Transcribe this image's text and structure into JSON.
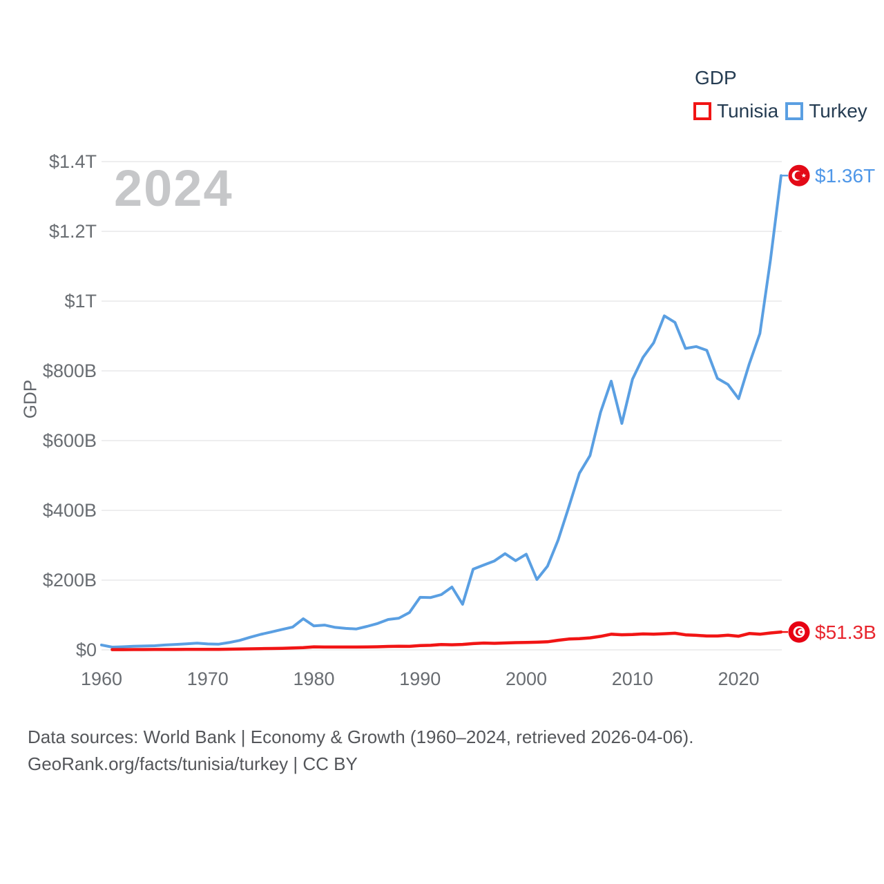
{
  "watermark": {
    "year": "2024"
  },
  "legend": {
    "title": "GDP",
    "items": [
      {
        "label": "Tunisia",
        "color": "#f11515"
      },
      {
        "label": "Turkey",
        "color": "#5a9fe2"
      }
    ]
  },
  "footer": {
    "line1": "Data sources: World Bank | Economy & Growth (1960–2024, retrieved 2026-04-06).",
    "line2": "GeoRank.org/facts/tunisia/turkey | CC BY"
  },
  "chart_data": {
    "type": "line",
    "title": "GDP",
    "ylabel": "GDP",
    "unit": "current US$",
    "x_range": [
      1960,
      2024
    ],
    "ylim_billions": [
      0,
      1400
    ],
    "grid": "horizontal",
    "legend_position": "top-right",
    "y_ticks": [
      {
        "value": 0,
        "label": "$0"
      },
      {
        "value": 200,
        "label": "$200B"
      },
      {
        "value": 400,
        "label": "$400B"
      },
      {
        "value": 600,
        "label": "$600B"
      },
      {
        "value": 800,
        "label": "$800B"
      },
      {
        "value": 1000,
        "label": "$1T"
      },
      {
        "value": 1200,
        "label": "$1.2T"
      },
      {
        "value": 1400,
        "label": "$1.4T"
      }
    ],
    "x_ticks": [
      1960,
      1970,
      1980,
      1990,
      2000,
      2010,
      2020
    ],
    "series": [
      {
        "name": "Turkey",
        "color": "#5a9fe2",
        "end_label": "$1.36T",
        "end_label_color": "#4f97e8",
        "flag": "turkey-flag-icon",
        "flag_bg": "#e30a17",
        "flag_fg": "#ffffff",
        "start_year": 1960,
        "values_billions_usd": [
          13.99,
          7.99,
          8.92,
          10.36,
          11.18,
          11.95,
          14.12,
          15.67,
          17.5,
          19.47,
          17.09,
          16.25,
          21.0,
          27.12,
          36.22,
          44.63,
          51.28,
          58.68,
          65.55,
          89.39,
          68.79,
          71.04,
          64.55,
          61.68,
          59.99,
          67.23,
          75.73,
          87.17,
          90.85,
          107.14,
          150.68,
          150.03,
          158.46,
          180.17,
          130.69,
          231.53,
          243.41,
          255.09,
          275.77,
          255.9,
          274.3,
          201.75,
          240.25,
          314.59,
          408.87,
          506.31,
          557.06,
          681.32,
          770.45,
          649.29,
          776.01,
          838.79,
          880.56,
          957.8,
          938.93,
          864.31,
          869.68,
          858.99,
          778.47,
          760.93,
          720.29,
          819.87,
          907.12,
          1118.25,
          1360.0
        ]
      },
      {
        "name": "Tunisia",
        "color": "#f11515",
        "end_label": "$51.3B",
        "end_label_color": "#e8252d",
        "flag": "tunisia-flag-icon",
        "flag_bg": "#e70013",
        "flag_fg": "#ffffff",
        "start_year": 1961,
        "values_billions_usd": [
          0.85,
          0.88,
          1.0,
          1.06,
          1.13,
          1.18,
          1.23,
          1.3,
          1.4,
          1.44,
          1.61,
          1.98,
          2.28,
          3.06,
          3.6,
          4.02,
          4.57,
          5.25,
          6.25,
          8.74,
          8.2,
          8.11,
          8.2,
          8.11,
          8.36,
          9.0,
          9.88,
          10.43,
          10.09,
          12.29,
          13.01,
          15.5,
          14.61,
          15.63,
          18.03,
          19.59,
          18.9,
          19.82,
          20.79,
          21.47,
          22.07,
          23.14,
          27.45,
          31.18,
          32.27,
          34.38,
          38.91,
          44.86,
          43.45,
          44.05,
          45.81,
          45.04,
          46.25,
          47.63,
          43.17,
          41.8,
          39.8,
          39.77,
          41.9,
          39.22,
          46.84,
          44.9,
          48.53,
          51.27
        ]
      }
    ]
  }
}
